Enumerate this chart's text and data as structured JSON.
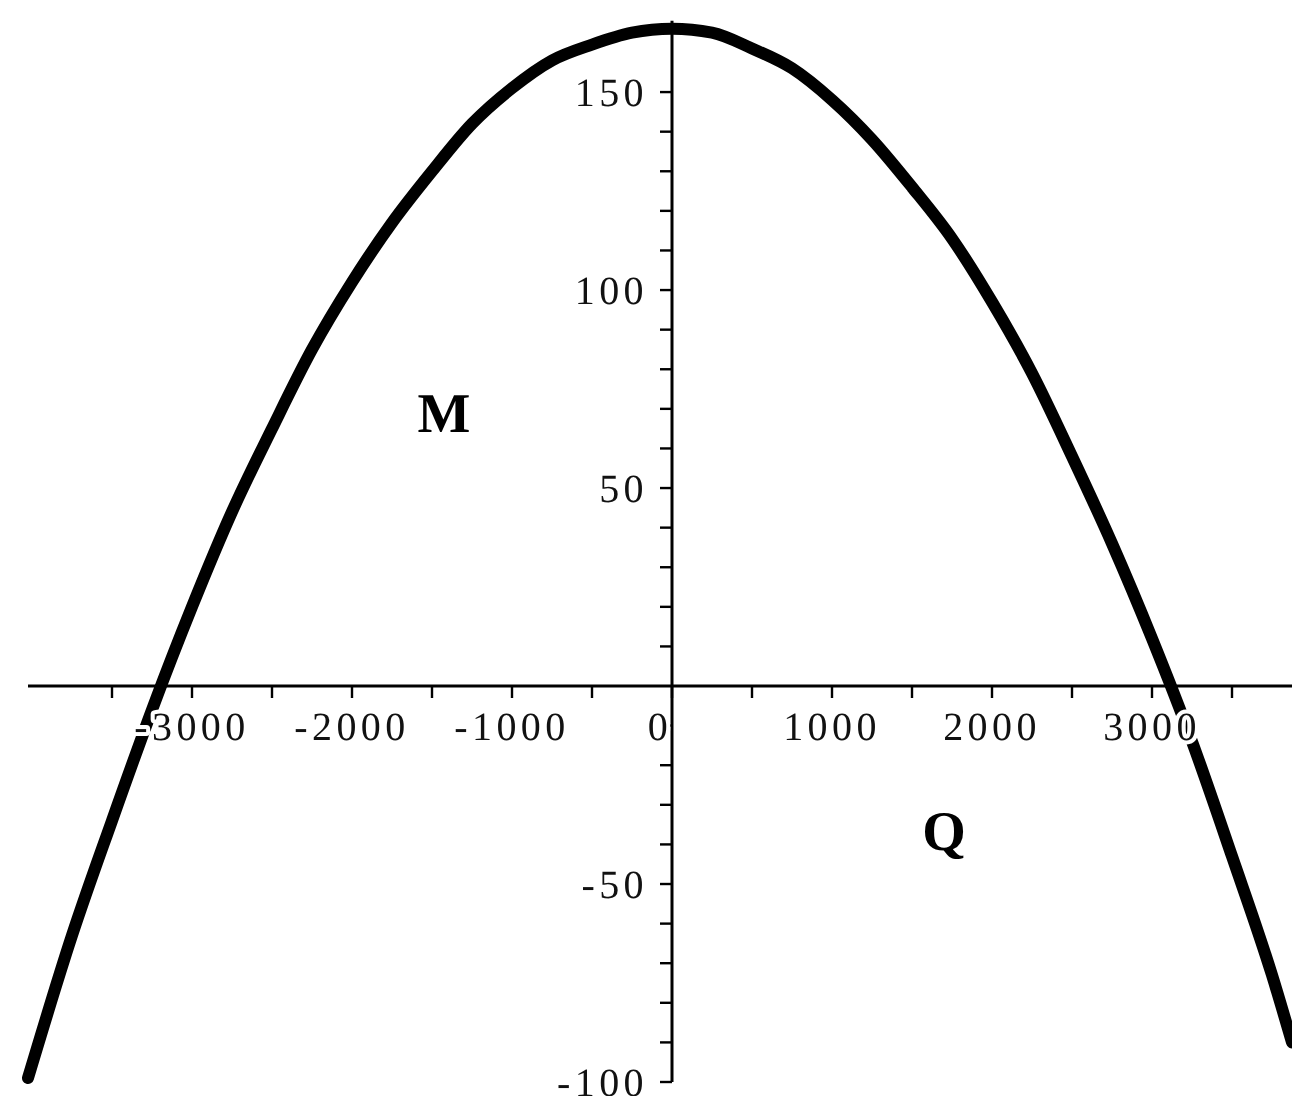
{
  "chart_data": {
    "type": "line",
    "xlabel": "Q",
    "ylabel": "M",
    "x": [
      -4025,
      -3750,
      -3500,
      -3250,
      -3000,
      -2750,
      -2500,
      -2250,
      -2000,
      -1750,
      -1500,
      -1250,
      -1000,
      -750,
      -500,
      -250,
      0,
      250,
      500,
      750,
      1000,
      1250,
      1500,
      1750,
      2000,
      2250,
      2500,
      2750,
      3000,
      3250,
      3500,
      3750,
      3875
    ],
    "series": [
      {
        "color": "#000000",
        "values": [
          -99,
          -63,
          -34,
          -6,
          20,
          44,
          65,
          85,
          102,
          117,
          130,
          142,
          151,
          158,
          162,
          165,
          166,
          165,
          161,
          156,
          148,
          138,
          126,
          113,
          97,
          79,
          58,
          36,
          12,
          -14,
          -43,
          -73,
          -90
        ]
      }
    ],
    "xlim": [
      -4025,
      3875
    ],
    "ylim": [
      -100,
      168
    ],
    "xticks": [
      {
        "value": -3500,
        "label": null
      },
      -3000,
      {
        "value": -2500,
        "label": null
      },
      -2000,
      {
        "value": -1500,
        "label": null
      },
      -1000,
      {
        "value": -500,
        "label": null
      },
      0,
      {
        "value": 500,
        "label": null
      },
      1000,
      {
        "value": 1500,
        "label": null
      },
      2000,
      {
        "value": 2500,
        "label": null
      },
      3000,
      {
        "value": 3500,
        "label": null
      }
    ],
    "yticks": [
      -100,
      {
        "value": -90,
        "label": null
      },
      {
        "value": -80,
        "label": null
      },
      {
        "value": -70,
        "label": null
      },
      {
        "value": -60,
        "label": null
      },
      -50,
      {
        "value": -40,
        "label": null
      },
      {
        "value": -30,
        "label": null
      },
      {
        "value": -20,
        "label": null
      },
      {
        "value": -10,
        "label": null
      },
      {
        "value": 10,
        "label": null
      },
      {
        "value": 20,
        "label": null
      },
      {
        "value": 30,
        "label": null
      },
      {
        "value": 40,
        "label": null
      },
      50,
      {
        "value": 60,
        "label": null
      },
      {
        "value": 70,
        "label": null
      },
      {
        "value": 80,
        "label": null
      },
      {
        "value": 90,
        "label": null
      },
      100,
      {
        "value": 110,
        "label": null
      },
      {
        "value": 120,
        "label": null
      },
      {
        "value": 130,
        "label": null
      },
      {
        "value": 140,
        "label": null
      },
      150
    ],
    "line_style": "solid"
  }
}
